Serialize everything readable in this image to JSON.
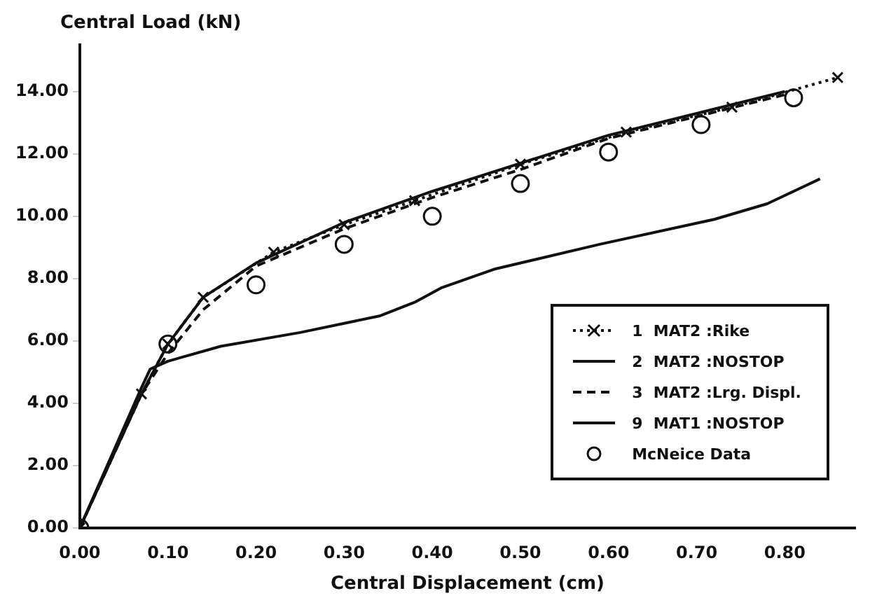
{
  "chart_data": {
    "type": "line",
    "xlabel": "Central Displacement (cm)",
    "ylabel": "Central Load (kN)",
    "xlim": [
      0,
      0.88
    ],
    "ylim": [
      0,
      15.5
    ],
    "xticks": [
      {
        "value": 0,
        "label": "0.00"
      },
      {
        "value": 0.1,
        "label": "0.10"
      },
      {
        "value": 0.2,
        "label": "0.20"
      },
      {
        "value": 0.3,
        "label": "0.30"
      },
      {
        "value": 0.4,
        "label": "0.40"
      },
      {
        "value": 0.5,
        "label": "0.50"
      },
      {
        "value": 0.6,
        "label": "0.60"
      },
      {
        "value": 0.7,
        "label": "0.70"
      },
      {
        "value": 0.8,
        "label": "0.80"
      }
    ],
    "yticks": [
      {
        "value": 0,
        "label": "0.00"
      },
      {
        "value": 2,
        "label": "2.00"
      },
      {
        "value": 4,
        "label": "4.00"
      },
      {
        "value": 6,
        "label": "6.00"
      },
      {
        "value": 8,
        "label": "8.00"
      },
      {
        "value": 10,
        "label": "10.00"
      },
      {
        "value": 12,
        "label": "12.00"
      },
      {
        "value": 14,
        "label": "14.00"
      }
    ],
    "grid": false,
    "legend": "bottom right",
    "series": [
      {
        "name": "1  MAT2 :Rike",
        "color": "#111111",
        "marker": "cross",
        "line_style": "dotted",
        "x": [
          0,
          0.07,
          0.1,
          0.14,
          0.22,
          0.3,
          0.38,
          0.5,
          0.62,
          0.74,
          0.86
        ],
        "values": [
          0,
          4.3,
          5.9,
          7.4,
          8.85,
          9.73,
          10.5,
          11.67,
          12.7,
          13.5,
          14.45
        ]
      },
      {
        "name": "2  MAT2 :NOSTOP",
        "color": "#111111",
        "marker": "none",
        "line_style": "solid",
        "x": [
          0,
          0.07,
          0.1,
          0.14,
          0.2,
          0.3,
          0.4,
          0.5,
          0.6,
          0.7,
          0.8
        ],
        "values": [
          0,
          4.3,
          5.9,
          7.4,
          8.5,
          9.8,
          10.8,
          11.7,
          12.6,
          13.3,
          14.0
        ]
      },
      {
        "name": "3  MAT2 :Lrg. Displ.",
        "color": "#111111",
        "marker": "none",
        "line_style": "dashed",
        "x": [
          0,
          0.07,
          0.1,
          0.14,
          0.2,
          0.3,
          0.4,
          0.5,
          0.6,
          0.7,
          0.8
        ],
        "values": [
          0,
          4.3,
          5.6,
          7.0,
          8.4,
          9.6,
          10.6,
          11.5,
          12.5,
          13.2,
          13.9
        ]
      },
      {
        "name": "9  MAT1 :NOSTOP",
        "color": "#111111",
        "marker": "none",
        "line_style": "solid",
        "x": [
          0,
          0.07,
          0.08,
          0.1,
          0.16,
          0.25,
          0.34,
          0.38,
          0.41,
          0.47,
          0.59,
          0.72,
          0.78,
          0.84
        ],
        "values": [
          0,
          4.5,
          5.1,
          5.35,
          5.83,
          6.27,
          6.8,
          7.24,
          7.7,
          8.3,
          9.1,
          9.9,
          10.4,
          11.2
        ]
      },
      {
        "name": "McNeice Data",
        "type": "scatter",
        "color": "#111111",
        "marker": "circle",
        "x": [
          0,
          0.1,
          0.2,
          0.3,
          0.4,
          0.5,
          0.6,
          0.705,
          0.81
        ],
        "values": [
          0,
          5.9,
          7.8,
          9.1,
          10.0,
          11.05,
          12.06,
          12.94,
          13.8
        ]
      }
    ]
  }
}
